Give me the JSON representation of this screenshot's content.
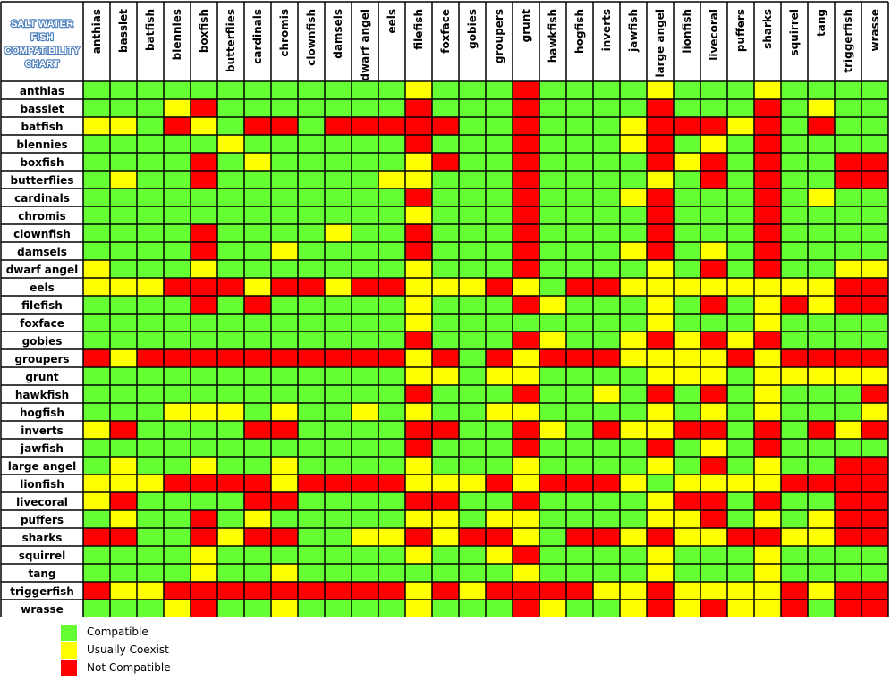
{
  "chart_data": {
    "type": "heatmap",
    "title": "SALT WATER FISH COMPATIBILITY CHART",
    "title_lines": [
      "SALT WATER",
      "FISH",
      "COMPATIBILITY",
      "CHART"
    ],
    "species": [
      "anthias",
      "basslet",
      "batfish",
      "blennies",
      "boxfish",
      "butterflies",
      "cardinals",
      "chromis",
      "clownfish",
      "damsels",
      "dwarf angel",
      "eels",
      "filefish",
      "foxface",
      "gobies",
      "groupers",
      "grunt",
      "hawkfish",
      "hogfish",
      "inverts",
      "jawfish",
      "large angel",
      "lionfish",
      "livecoral",
      "puffers",
      "sharks",
      "squirrel",
      "tang",
      "triggerfish",
      "wrasse"
    ],
    "legend": [
      {
        "code": "G",
        "label": "Compatible",
        "color": "#66ff33"
      },
      {
        "code": "Y",
        "label": "Usually Coexist",
        "color": "#ffff00"
      },
      {
        "code": "R",
        "label": "Not Compatible",
        "color": "#ff0000"
      }
    ],
    "matrix": [
      "GGGGGGGGGGGGYGGGRGGGGYGGGYGGGG",
      "GGGYRGGGGGGGRGGGRGGGGRGGGRGYGG",
      "YYGRYGRRGRRRRRGGRGGGYRRRYRGRGG",
      "GGGGGYGGGGGGRGGGRGGGYRGYGRGGGG",
      "GGGGRGYGGGGGYRGGRGGGGRYRGRGGRR",
      "GYGGRGGGGGGYYGGGRGGGGYGRGRGGRR",
      "GGGGGGGGGGGGRGGGRGGGYRGGGRGYGG",
      "GGGGGGGGGGGGYGGGRGGGGRGGGRGGGG",
      "GGGGRGGGGYGGRGGGRGGGGRGGGRGGGG",
      "GGGGRGGYGGGGRGGGRGGGYRGYGRGGGG",
      "YGGGYGGGGGGGYGGGRGGGGYGRGRGGYY",
      "YYYRRRYRRYRRYYYRYGRRYYYYYYYYRR",
      "GGGGRGRGGGGGYGGGRYGGGYGRGYRYRR",
      "GGGGGGGGGGGGYGGGGGGGGYGGGYGGGG",
      "GGGGGGGGGGGGRGGGRYGGYRYRYRGGGG",
      "RYRRRRRRRRRRYRGRYRRRYYYYRYRRRR",
      "GGGGGGGGGGGGYYGYYGGGGYYYGYYYYY",
      "GGGGGGGGGGGGRGGGRGGYGRGRGYGGGR",
      "GGGYYYGYGGYGYGGYYGGGGYGYGYGGGY",
      "YRGGGGRRGGGGRRGGRYGRYYRRGRGRYR",
      "GGGGGGGGGGGGRGGGRGGGGRGYGRGGGG",
      "GYGGYGGYGGGGYGGGYGGGGYGRGYGGRR",
      "YYYRRRRYRRRRYYYRYRRRYGYYYYRRRR",
      "YRGGGGRRGGGGRRGGRGGGGYRRGRGGRR",
      "GYGGRGYGGGGGYYGYYGGGGYYRGYGYRR",
      "RRGGRYRRGGYYRYRRYGRRYRYYRRYYRR",
      "GGGGYGGGGGGGYGGYRGGGGYGGGYGGGG",
      "GGGGYGGYGGGGGGGGYGGGGYGGGYGGGG",
      "RYYRRRRRRRRRYRYRRRRYYRYYYYRYRR",
      "GGGYRGGYGGGGYGGGRYGGYRYRYYRGRR"
    ]
  }
}
